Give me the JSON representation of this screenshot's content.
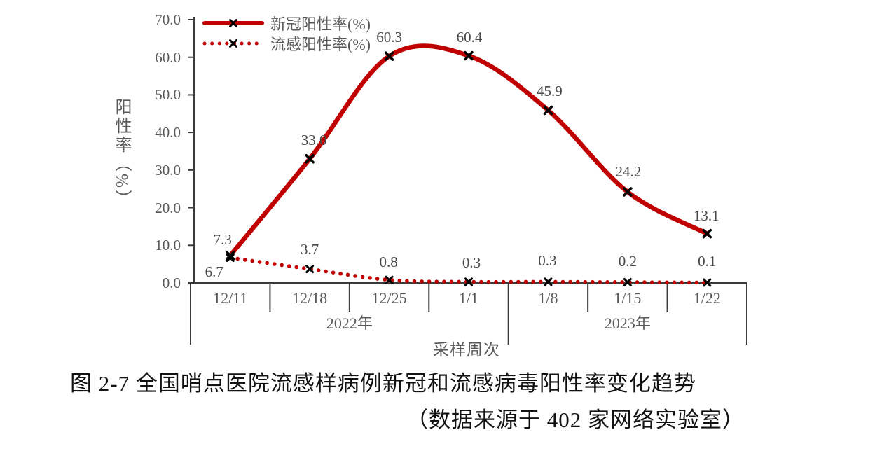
{
  "figure": {
    "caption_line1": "图 2-7 全国哨点医院流感样病例新冠和流感病毒阳性率变化趋势",
    "caption_line2": "（数据来源于 402 家网络实验室）"
  },
  "chart_data": {
    "type": "line",
    "categories": [
      "12/11",
      "12/18",
      "12/25",
      "1/1",
      "1/8",
      "1/15",
      "1/22"
    ],
    "year_groups": [
      {
        "label": "2022年",
        "span": [
          0,
          3
        ]
      },
      {
        "label": "2023年",
        "span": [
          4,
          6
        ]
      }
    ],
    "series": [
      {
        "name": "新冠阳性率(%)",
        "style": "solid",
        "color": "#c00000",
        "marker": "x",
        "values": [
          7.3,
          33.0,
          60.3,
          60.4,
          45.9,
          24.2,
          13.1
        ],
        "labels": [
          "7.3",
          "33.0",
          "60.3",
          "60.4",
          "45.9",
          "24.2",
          "13.1"
        ]
      },
      {
        "name": "流感阳性率(%)",
        "style": "dotted",
        "color": "#c00000",
        "marker": "x",
        "values": [
          6.7,
          3.7,
          0.8,
          0.3,
          0.3,
          0.2,
          0.1
        ],
        "labels": [
          "6.7",
          "3.7",
          "0.8",
          "0.3",
          "0.3",
          "0.2",
          "0.1"
        ]
      }
    ],
    "xlabel": "采样周次",
    "ylabel": "阳性率（%）",
    "ylim": [
      0,
      70
    ],
    "ytick_step": 10,
    "ytick_labels": [
      "0.0",
      "10.0",
      "20.0",
      "30.0",
      "40.0",
      "50.0",
      "60.0",
      "70.0"
    ],
    "grid": false,
    "legend_position": "top-left-inside",
    "line_shape": "smooth"
  },
  "colors": {
    "series_red": "#c00000",
    "axis": "#3b3b3b",
    "chart_text": "#595959",
    "data_label_text": "#4a4a4a",
    "marker_black": "#000000",
    "caption_text": "#121212"
  }
}
